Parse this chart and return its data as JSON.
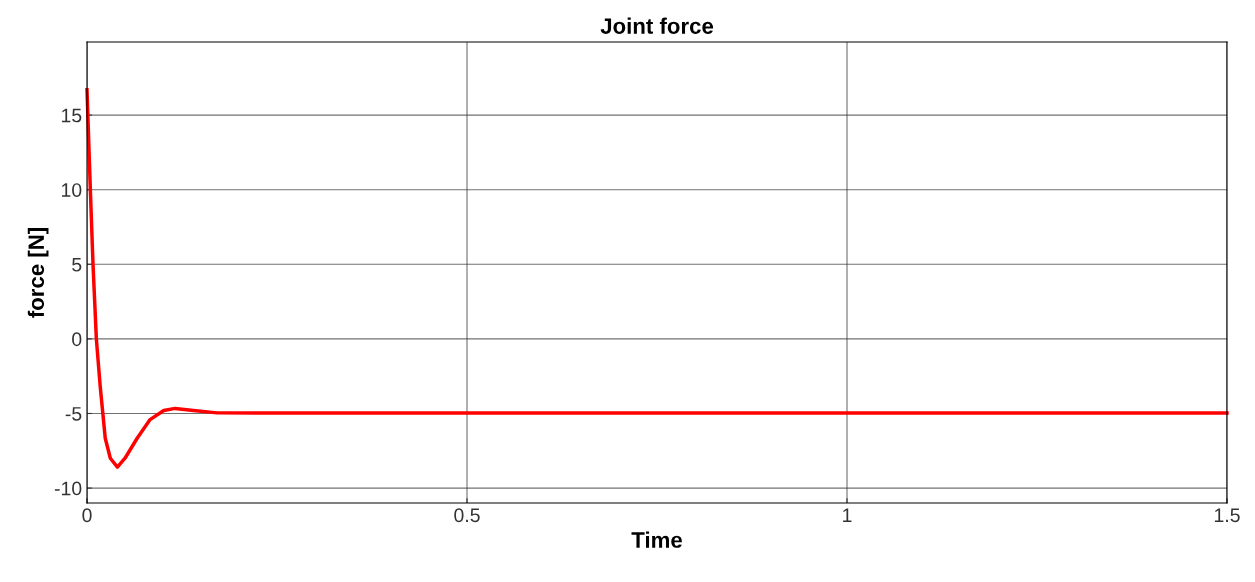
{
  "chart_data": {
    "type": "line",
    "title": "Joint force",
    "xlabel": "Time",
    "ylabel": "force [N]",
    "series": [
      {
        "color": "#ff0000",
        "x": [
          0,
          0.0044,
          0.0079,
          0.0123,
          0.0175,
          0.024,
          0.0307,
          0.04,
          0.05,
          0.066,
          0.083,
          0.101,
          0.116,
          0.14,
          0.171,
          0.25,
          0.5,
          1.0,
          1.5
        ],
        "values": [
          16.7,
          10,
          5,
          0,
          -3.25,
          -6.66,
          -8.0,
          -8.6,
          -8.0,
          -6.66,
          -5.41,
          -4.8,
          -4.66,
          -4.8,
          -4.96,
          -4.97,
          -4.97,
          -4.97,
          -4.97
        ]
      }
    ],
    "xlim": [
      0,
      1.5
    ],
    "ylim": [
      -11,
      19.9
    ],
    "xticks": [
      0,
      0.5,
      1,
      1.5
    ],
    "yticks": [
      -10,
      -5,
      0,
      5,
      10,
      15
    ],
    "grid": true,
    "legend": false,
    "marker": "none",
    "line_style": "solid"
  }
}
